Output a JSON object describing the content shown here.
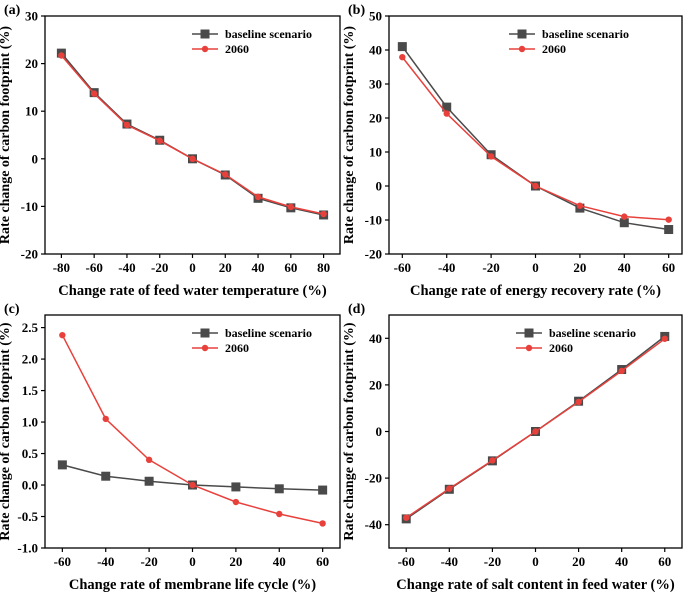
{
  "chart_data": [
    {
      "type": "line",
      "panel_label": "(a)",
      "xlabel": "Change rate of feed water temperature (%)",
      "ylabel": "Rate change of carbon footprint (%)",
      "x": [
        -80,
        -60,
        -40,
        -20,
        0,
        20,
        40,
        60,
        80
      ],
      "xticks": [
        -80,
        -60,
        -40,
        -20,
        0,
        20,
        40,
        60,
        80
      ],
      "xtick_labels": [
        "-80",
        "-60",
        "-40",
        "-20",
        "0",
        "20",
        "40",
        "60",
        "80"
      ],
      "xlim": [
        -90,
        90
      ],
      "yticks": [
        -20,
        -10,
        0,
        10,
        20,
        30
      ],
      "ytick_labels": [
        "-20",
        "-10",
        "0",
        "10",
        "20",
        "30"
      ],
      "ylim": [
        -20,
        30
      ],
      "legend": "top-right",
      "series": [
        {
          "name": "baseline scenario",
          "color": "#4a4a4a",
          "marker": "square",
          "values": [
            22.2,
            13.9,
            7.3,
            3.9,
            0.0,
            -3.4,
            -8.3,
            -10.3,
            -11.8
          ]
        },
        {
          "name": "2060",
          "color": "#e8413c",
          "marker": "circle",
          "values": [
            21.7,
            13.7,
            7.1,
            3.8,
            0.0,
            -3.3,
            -8.0,
            -10.1,
            -11.6
          ]
        }
      ]
    },
    {
      "type": "line",
      "panel_label": "(b)",
      "xlabel": "Change rate of energy recovery rate (%)",
      "ylabel": "Rate change of carbon footprint (%)",
      "x": [
        -60,
        -40,
        -20,
        0,
        20,
        40,
        60
      ],
      "xticks": [
        -60,
        -40,
        -20,
        0,
        20,
        40,
        60
      ],
      "xtick_labels": [
        "-60",
        "-40",
        "-20",
        "0",
        "20",
        "40",
        "60"
      ],
      "xlim": [
        -66,
        66
      ],
      "yticks": [
        -20,
        -10,
        0,
        10,
        20,
        30,
        40,
        50
      ],
      "ytick_labels": [
        "-20",
        "-10",
        "0",
        "10",
        "20",
        "30",
        "40",
        "50"
      ],
      "ylim": [
        -20,
        50
      ],
      "legend": "top-right",
      "series": [
        {
          "name": "baseline scenario",
          "color": "#4a4a4a",
          "marker": "square",
          "values": [
            41.0,
            23.2,
            9.2,
            0.0,
            -6.5,
            -10.8,
            -12.8
          ]
        },
        {
          "name": "2060",
          "color": "#e8413c",
          "marker": "circle",
          "values": [
            37.9,
            21.3,
            8.7,
            0.0,
            -5.8,
            -9.0,
            -9.9
          ]
        }
      ]
    },
    {
      "type": "line",
      "panel_label": "(c)",
      "xlabel": "Change rate of membrane life cycle (%)",
      "ylabel": "Rate change of carbon footprint (%)",
      "x": [
        -60,
        -40,
        -20,
        0,
        20,
        40,
        60
      ],
      "xticks": [
        -60,
        -40,
        -20,
        0,
        20,
        40,
        60
      ],
      "xtick_labels": [
        "-60",
        "-40",
        "-20",
        "0",
        "20",
        "40",
        "60"
      ],
      "xlim": [
        -68,
        68
      ],
      "yticks": [
        -1.0,
        -0.5,
        0.0,
        0.5,
        1.0,
        1.5,
        2.0,
        2.5
      ],
      "ytick_labels": [
        "-1.0",
        "-0.5",
        "0.0",
        "0.5",
        "1.0",
        "1.5",
        "2.0",
        "2.5"
      ],
      "ylim": [
        -1.0,
        2.7
      ],
      "legend": "top-right",
      "series": [
        {
          "name": "baseline scenario",
          "color": "#4a4a4a",
          "marker": "square",
          "values": [
            0.32,
            0.14,
            0.06,
            0.0,
            -0.03,
            -0.06,
            -0.08
          ]
        },
        {
          "name": "2060",
          "color": "#e8413c",
          "marker": "circle",
          "values": [
            2.38,
            1.05,
            0.4,
            0.0,
            -0.27,
            -0.46,
            -0.61
          ]
        }
      ]
    },
    {
      "type": "line",
      "panel_label": "(d)",
      "xlabel": "Change rate of salt content in feed water (%)",
      "ylabel": "Rate change of carbon footprint (%)",
      "x": [
        -60,
        -40,
        -20,
        0,
        20,
        40,
        60
      ],
      "xticks": [
        -60,
        -40,
        -20,
        0,
        20,
        40,
        60
      ],
      "xtick_labels": [
        "-60",
        "-40",
        "-20",
        "0",
        "20",
        "40",
        "60"
      ],
      "xlim": [
        -68,
        68
      ],
      "yticks": [
        -40,
        -20,
        0,
        20,
        40
      ],
      "ytick_labels": [
        "-40",
        "-20",
        "0",
        "20",
        "40"
      ],
      "ylim": [
        -50,
        50
      ],
      "legend": "top-left",
      "series": [
        {
          "name": "baseline scenario",
          "color": "#4a4a4a",
          "marker": "square",
          "values": [
            -37.5,
            -24.8,
            -12.6,
            0.0,
            13.0,
            26.6,
            40.8
          ]
        },
        {
          "name": "2060",
          "color": "#e8413c",
          "marker": "circle",
          "values": [
            -37.0,
            -24.5,
            -12.4,
            0.0,
            12.7,
            26.0,
            39.8
          ]
        }
      ]
    }
  ]
}
